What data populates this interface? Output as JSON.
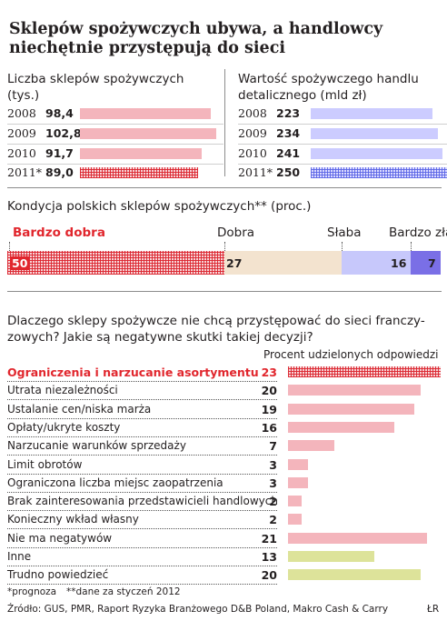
{
  "title": "Sklepów spożywczych ubywa, a handlowcy niechętnie przystępują do sieci",
  "chart_data": [
    {
      "type": "bar",
      "title": "Liczba sklepów spożywczych (tys.)",
      "categories": [
        "2008",
        "2009",
        "2010",
        "2011*"
      ],
      "values": [
        98.4,
        102.8,
        91.7,
        89.0
      ],
      "value_labels": [
        "98,4",
        "102,8",
        "91,7",
        "89,0"
      ],
      "colors": [
        "#f4b5bc",
        "#f4b5bc",
        "#f4b5bc",
        "hatched-red"
      ]
    },
    {
      "type": "bar",
      "title": "Wartość spożywczego handlu detalicznego (mld zł)",
      "categories": [
        "2008",
        "2009",
        "2010",
        "2011*"
      ],
      "values": [
        223,
        234,
        241,
        250
      ],
      "value_labels": [
        "223",
        "234",
        "241",
        "250"
      ],
      "colors": [
        "#ccccff",
        "#ccccff",
        "#ccccff",
        "hatched-blue"
      ]
    },
    {
      "type": "bar",
      "title": "Kondycja polskich sklepów spożywczych** (proc.)",
      "stacked": true,
      "series": [
        {
          "name": "Bardzo dobra",
          "values": [
            50
          ],
          "color": "hatched-red"
        },
        {
          "name": "Dobra",
          "values": [
            27
          ],
          "color": "#f3e3cf"
        },
        {
          "name": "Słaba",
          "values": [
            16
          ],
          "color": "#c7c8fb"
        },
        {
          "name": "Bardzo zła",
          "values": [
            7
          ],
          "color": "#7a6fe6"
        }
      ]
    },
    {
      "type": "bar",
      "orientation": "horizontal",
      "title": "Dlaczego sklepy spożywcze nie chcą przystępować do sieci franczy- zowych? Jakie są negatywne skutki takiej decyzji?",
      "value_axis_label": "Procent udzielonych odpowiedzi",
      "categories": [
        "Ograniczenia i narzucanie asortymentu",
        "Utrata niezależności",
        "Ustalanie cen/niska marża",
        "Opłaty/ukryte koszty",
        "Narzucanie warunków sprzedaży",
        "Limit obrotów",
        "Ograniczona liczba miejsc zaopatrzenia",
        "Brak zainteresowania przedstawicieli handlowych",
        "Konieczny wkład własny",
        "Nie ma negatywów",
        "Inne",
        "Trudno powiedzieć"
      ],
      "values": [
        23,
        20,
        19,
        16,
        7,
        3,
        3,
        2,
        2,
        21,
        13,
        20
      ],
      "colors": [
        "hatched-red",
        "#f4b5bc",
        "#f4b5bc",
        "#f4b5bc",
        "#f4b5bc",
        "#f4b5bc",
        "#f4b5bc",
        "#f4b5bc",
        "#f4b5bc",
        "#f4b5bc",
        "#dde39a",
        "#dde39a"
      ]
    }
  ],
  "footnotes": {
    "note1": "*prognoza",
    "note2": "**dane za styczeń 2012",
    "source": "Źródło: GUS, PMR, Raport Ryzyka Branżowego D&B Poland, Makro Cash & Carry",
    "credit": "ŁR"
  }
}
